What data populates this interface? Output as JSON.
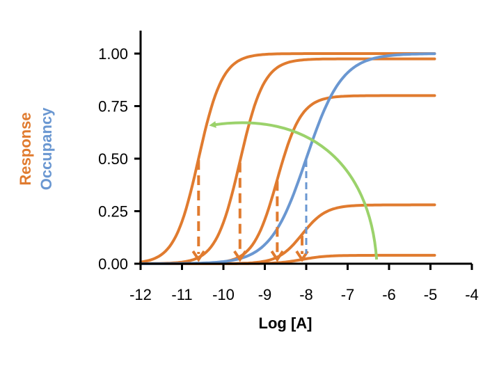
{
  "chart_data": {
    "type": "line",
    "xlabel": "Log [A]",
    "ylabel_response": "Response",
    "ylabel_occupancy": "Occupancy",
    "xlim": [
      -12,
      -4
    ],
    "ylim": [
      0,
      1.0
    ],
    "x_ticks": [
      -12,
      -11,
      -10,
      -9,
      -8,
      -7,
      -6,
      -5,
      -4
    ],
    "x_tick_labels": [
      "-12",
      "-11",
      "-10",
      "-9",
      "-8",
      "-7",
      "-6",
      "-5",
      "-4"
    ],
    "y_ticks": [
      0,
      0.25,
      0.5,
      0.75,
      1.0
    ],
    "y_tick_labels": [
      "0.00",
      "0.25",
      "0.50",
      "0.75",
      "1.00"
    ],
    "grid": false,
    "colors": {
      "response": "#e07b2f",
      "occupancy": "#6a97d1",
      "arrow": "#9bd26b",
      "axis": "#000000"
    },
    "x_range_plotted": [
      -12,
      -4.9
    ],
    "series": [
      {
        "role": "response",
        "ec50": -10.6,
        "emax": 1.0,
        "hill": 1.5
      },
      {
        "role": "response",
        "ec50": -9.6,
        "emax": 0.975,
        "hill": 1.5
      },
      {
        "role": "response",
        "ec50": -8.7,
        "emax": 0.8,
        "hill": 1.5
      },
      {
        "role": "response",
        "ec50": -8.1,
        "emax": 0.28,
        "hill": 1.5
      },
      {
        "role": "response",
        "ec50": -8.1,
        "emax": 0.04,
        "hill": 1.5
      },
      {
        "role": "occupancy",
        "ec50": -8.0,
        "emax": 1.0,
        "hill": 1.0
      }
    ],
    "annotations": {
      "ec50_markers": [
        {
          "x": -10.6,
          "y": 0.5,
          "color": "response"
        },
        {
          "x": -9.6,
          "y": 0.4875,
          "color": "response"
        },
        {
          "x": -8.7,
          "y": 0.4,
          "color": "response"
        },
        {
          "x": -8.1,
          "y": 0.14,
          "color": "response"
        },
        {
          "x": -8.0,
          "y": 0.5,
          "color": "occupancy"
        }
      ],
      "curved_arrow": {
        "from": [
          -6.3,
          0.0
        ],
        "to": [
          -10.5,
          0.66
        ]
      }
    }
  }
}
